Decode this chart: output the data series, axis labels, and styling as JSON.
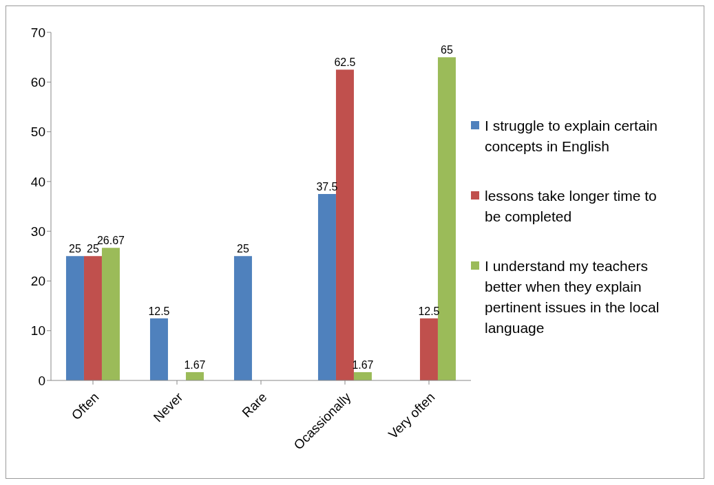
{
  "chart_data": {
    "type": "bar",
    "categories": [
      "Often",
      "Never",
      "Rare",
      "Ocassionally",
      "Very often"
    ],
    "series": [
      {
        "name": "I struggle to explain certain concepts in English",
        "color": "#4f81bd",
        "values": [
          25,
          12.5,
          25,
          37.5,
          null
        ]
      },
      {
        "name": "lessons take longer time to be completed",
        "color": "#c0504d",
        "values": [
          25,
          null,
          null,
          62.5,
          12.5
        ]
      },
      {
        "name": "I understand my teachers better when they explain pertinent issues in the local language",
        "color": "#9bbb59",
        "values": [
          26.67,
          1.67,
          null,
          1.67,
          65
        ]
      }
    ],
    "ylim": [
      0,
      70
    ],
    "yticks": [
      0,
      10,
      20,
      30,
      40,
      50,
      60,
      70
    ],
    "grid": false,
    "legend": "right",
    "data_labels": true
  }
}
